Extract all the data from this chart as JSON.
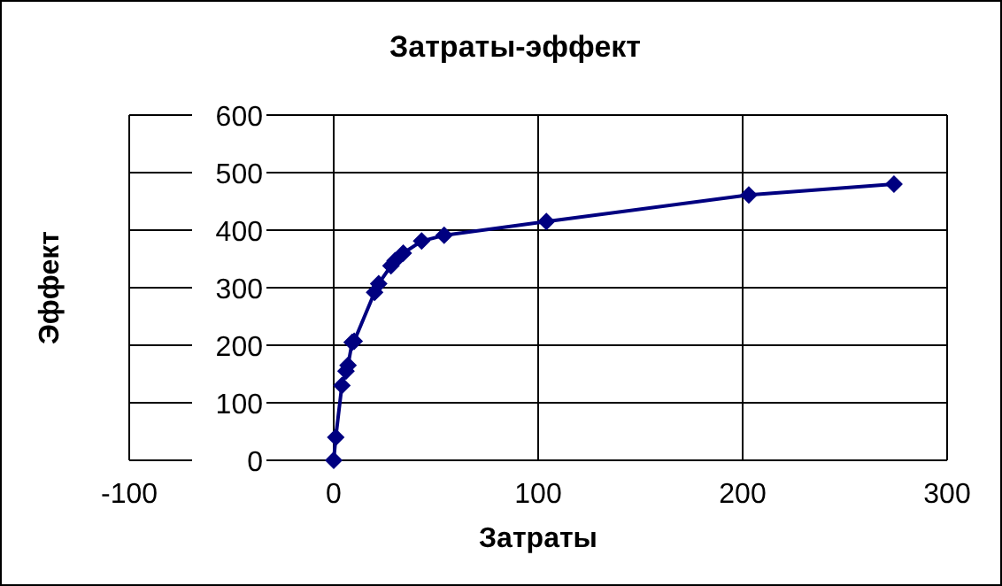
{
  "chart_data": {
    "type": "line",
    "title": "Затраты-эффект",
    "xlabel": "Затраты",
    "ylabel": "Эффект",
    "x": [
      0,
      1,
      4,
      6,
      7,
      9,
      10,
      20,
      22,
      28,
      30,
      34,
      43,
      54,
      104,
      203,
      274
    ],
    "series": [
      {
        "color": "#000080",
        "values": [
          0,
          40,
          130,
          155,
          165,
          205,
          207,
          292,
          307,
          338,
          347,
          360,
          381,
          391,
          415,
          461,
          480
        ]
      }
    ],
    "xlim": [
      -100,
      300
    ],
    "xticks": [
      -100,
      0,
      100,
      200,
      300
    ],
    "ylim": [
      0,
      600
    ],
    "yticks": [
      0,
      100,
      200,
      300,
      400,
      500,
      600
    ],
    "grid": true,
    "marker": "diamond",
    "line_style": "solid"
  }
}
